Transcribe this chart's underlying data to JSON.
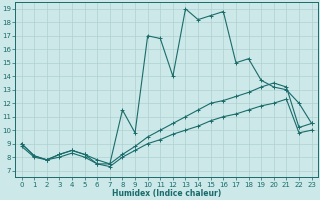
{
  "xlabel": "Humidex (Indice chaleur)",
  "xlim": [
    -0.5,
    23.5
  ],
  "ylim": [
    6.5,
    19.5
  ],
  "xticks": [
    0,
    1,
    2,
    3,
    4,
    5,
    6,
    7,
    8,
    9,
    10,
    11,
    12,
    13,
    14,
    15,
    16,
    17,
    18,
    19,
    20,
    21,
    22,
    23
  ],
  "yticks": [
    7,
    8,
    9,
    10,
    11,
    12,
    13,
    14,
    15,
    16,
    17,
    18,
    19
  ],
  "bg_color": "#cce8e8",
  "line_color": "#1a6b6b",
  "grid_color": "#b0d0d0",
  "line1_x": [
    0,
    1,
    2,
    3,
    4,
    5,
    6,
    7,
    8,
    9,
    10,
    11,
    12,
    13,
    14,
    15,
    16,
    17,
    18,
    19,
    20,
    21,
    22,
    23
  ],
  "line1_y": [
    9.0,
    8.1,
    7.8,
    8.2,
    8.5,
    8.2,
    7.5,
    7.5,
    11.5,
    9.8,
    17.0,
    16.8,
    14.0,
    19.0,
    18.2,
    18.5,
    18.8,
    15.0,
    15.3,
    13.7,
    13.2,
    13.0,
    12.0,
    10.5
  ],
  "line2_x": [
    0,
    1,
    2,
    3,
    4,
    5,
    6,
    7,
    8,
    9,
    10,
    11,
    12,
    13,
    14,
    15,
    16,
    17,
    18,
    19,
    20,
    21,
    22,
    23
  ],
  "line2_y": [
    9.0,
    8.1,
    7.8,
    8.2,
    8.5,
    8.2,
    7.8,
    7.5,
    8.2,
    8.8,
    9.5,
    10.0,
    10.5,
    11.0,
    11.5,
    12.0,
    12.2,
    12.5,
    12.8,
    13.2,
    13.5,
    13.2,
    10.2,
    10.5
  ],
  "line3_x": [
    0,
    1,
    2,
    3,
    4,
    5,
    6,
    7,
    8,
    9,
    10,
    11,
    12,
    13,
    14,
    15,
    16,
    17,
    18,
    19,
    20,
    21,
    22,
    23
  ],
  "line3_y": [
    8.8,
    8.0,
    7.8,
    8.0,
    8.3,
    8.0,
    7.5,
    7.3,
    8.0,
    8.5,
    9.0,
    9.3,
    9.7,
    10.0,
    10.3,
    10.7,
    11.0,
    11.2,
    11.5,
    11.8,
    12.0,
    12.3,
    9.8,
    10.0
  ]
}
